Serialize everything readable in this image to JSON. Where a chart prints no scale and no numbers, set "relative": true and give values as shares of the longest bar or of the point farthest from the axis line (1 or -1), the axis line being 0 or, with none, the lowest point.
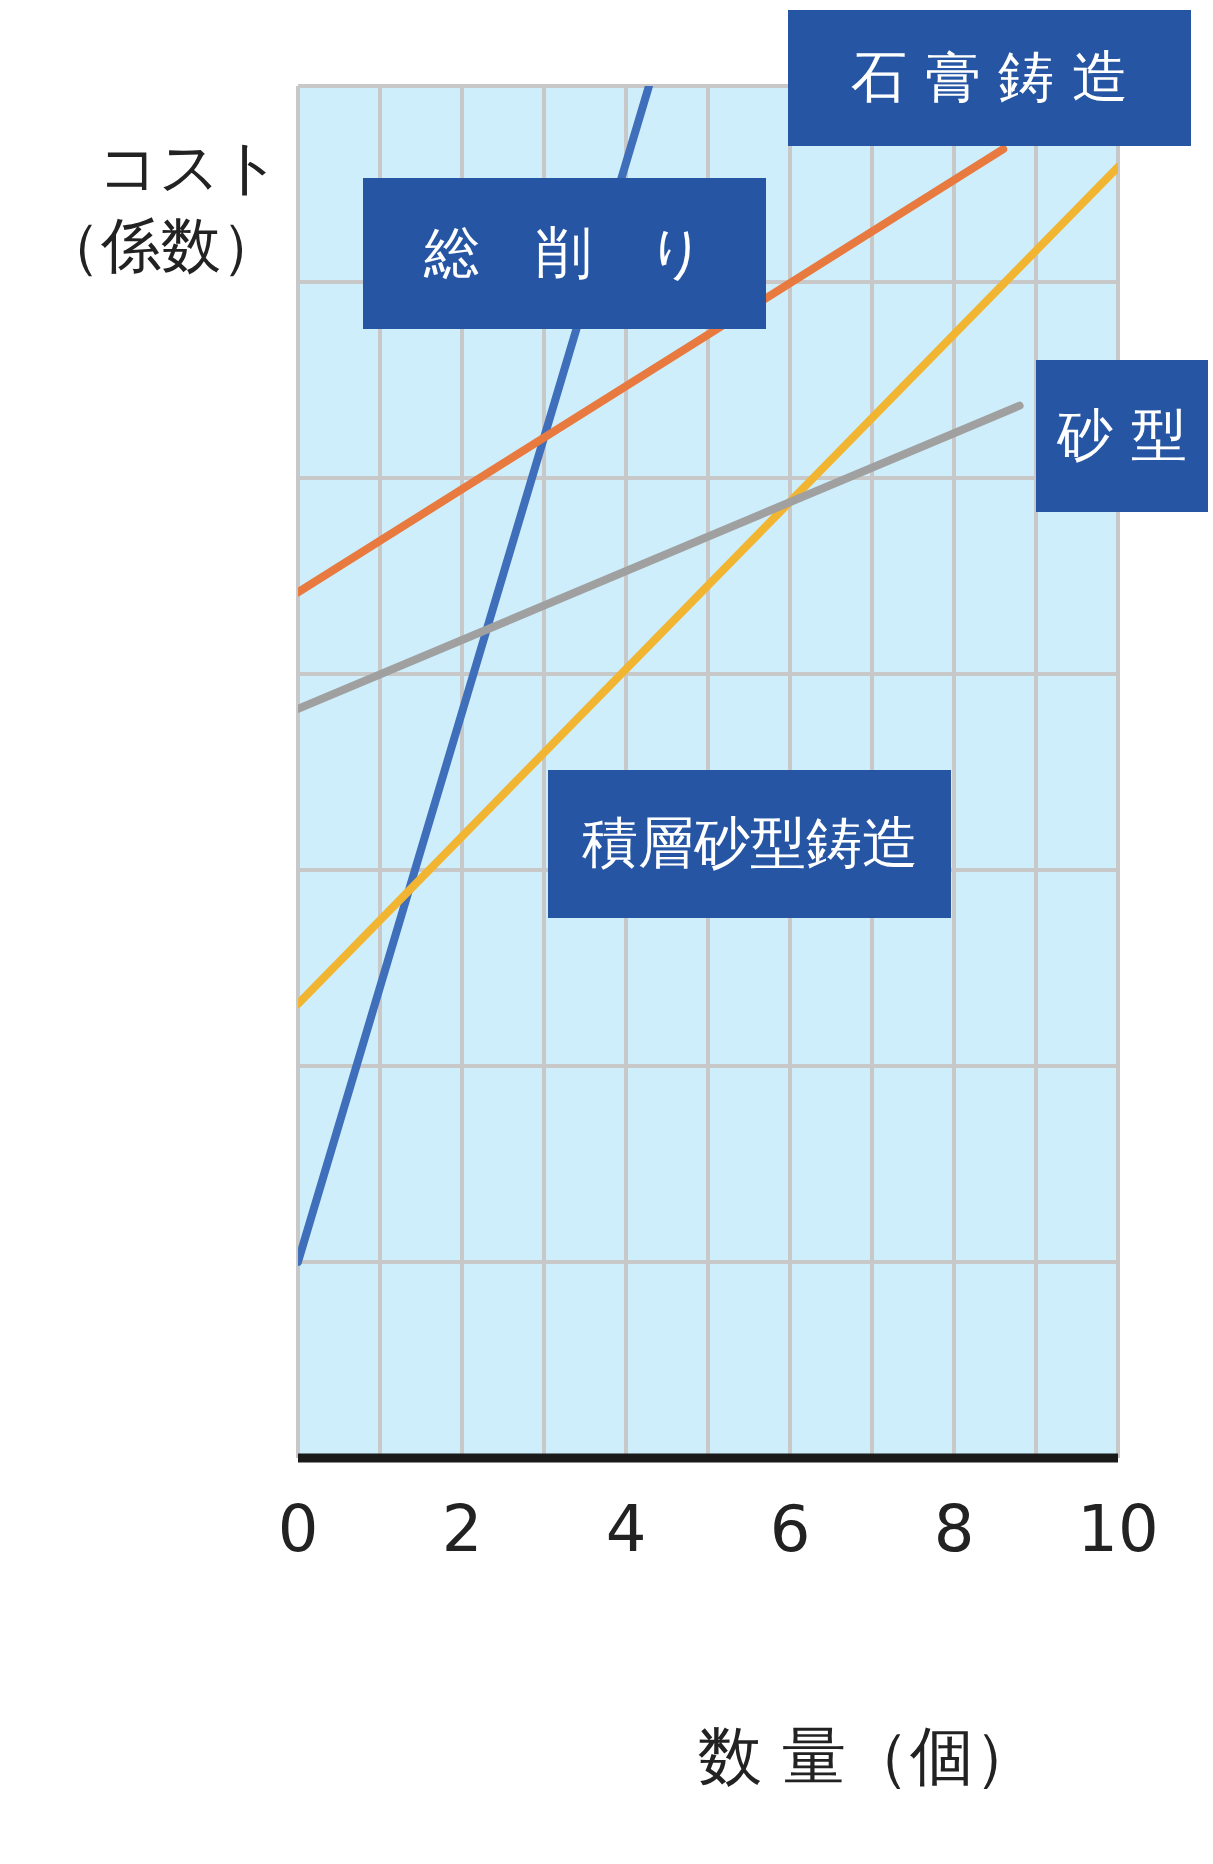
{
  "chart_data": {
    "type": "line",
    "relative": true,
    "xlabel": "数 量（個）",
    "ylabel": "コスト（係数）",
    "xlim": [
      0,
      10
    ],
    "xticks": [
      0,
      {
        "value": 1,
        "label": null
      },
      2,
      {
        "value": 3,
        "label": null
      },
      4,
      {
        "value": 5,
        "label": null
      },
      6,
      {
        "value": 7,
        "label": null
      },
      8,
      {
        "value": 9,
        "label": null
      },
      10
    ],
    "grid": true,
    "legend": false,
    "marker": "none",
    "line_style": "solid",
    "series": [
      {
        "name": "総　削　り",
        "color": "#3f6fba",
        "x": [
          0,
          4.28
        ],
        "values": [
          0.143,
          1.0
        ]
      },
      {
        "name": "石 膏 鋳 造",
        "color": "#e8793f",
        "x": [
          0,
          8.6
        ],
        "values": [
          0.631,
          0.954
        ]
      },
      {
        "name": "積層砂型鋳造",
        "color": "#f2b531",
        "x": [
          0,
          10
        ],
        "values": [
          0.331,
          0.941
        ]
      },
      {
        "name": "砂 型",
        "color": "#a0a0a0",
        "x": [
          0,
          8.8
        ],
        "values": [
          0.546,
          0.767
        ]
      }
    ]
  }
}
